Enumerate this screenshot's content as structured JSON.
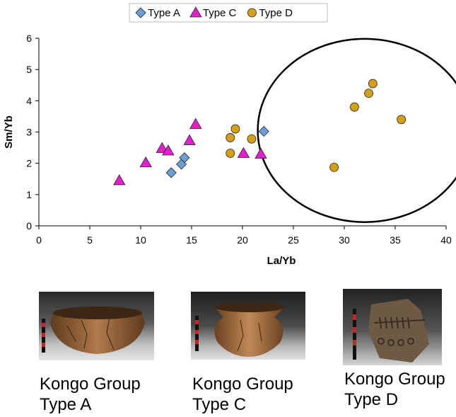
{
  "chart_data": {
    "type": "scatter",
    "xlabel": "La/Yb",
    "ylabel": "Sm/Yb",
    "xlim": [
      0,
      40
    ],
    "ylim": [
      0,
      6
    ],
    "xticks": [
      0,
      5,
      10,
      15,
      20,
      25,
      30,
      35,
      40
    ],
    "yticks": [
      0,
      1,
      2,
      3,
      4,
      5,
      6
    ],
    "grid": false,
    "legend": "top-center",
    "series": [
      {
        "name": "Type A",
        "marker": "diamond",
        "color": "#6a9fd8",
        "points": [
          [
            13.0,
            1.7
          ],
          [
            14.0,
            1.97
          ],
          [
            14.3,
            2.18
          ],
          [
            22.1,
            3.02
          ]
        ]
      },
      {
        "name": "Type C",
        "marker": "triangle",
        "color": "#e51ecf",
        "points": [
          [
            7.9,
            1.45
          ],
          [
            10.5,
            2.02
          ],
          [
            12.1,
            2.48
          ],
          [
            12.7,
            2.4
          ],
          [
            14.8,
            2.73
          ],
          [
            15.4,
            3.25
          ],
          [
            20.1,
            2.32
          ],
          [
            21.8,
            2.3
          ]
        ]
      },
      {
        "name": "Type D",
        "marker": "circle",
        "color": "#d4a017",
        "points": [
          [
            18.8,
            2.82
          ],
          [
            19.3,
            3.1
          ],
          [
            18.8,
            2.32
          ],
          [
            20.9,
            2.78
          ],
          [
            29.0,
            1.87
          ],
          [
            31.0,
            3.8
          ],
          [
            32.4,
            4.24
          ],
          [
            32.8,
            4.55
          ],
          [
            35.6,
            3.4
          ]
        ]
      }
    ],
    "annotations": [
      {
        "shape": "ellipse",
        "center": [
          32.0,
          3.05
        ],
        "radius": [
          10.5,
          2.93
        ],
        "encloses": "Type D cluster"
      }
    ]
  },
  "photos": [
    {
      "subject": "bowl",
      "caption_line1": "Kongo Group",
      "caption_line2": "Type A",
      "pottery_color": "#8a5a34"
    },
    {
      "subject": "pot",
      "caption_line1": "Kongo Group",
      "caption_line2": "Type C",
      "pottery_color": "#9a6a3c"
    },
    {
      "subject": "sherd",
      "caption_line1": "Kongo Group",
      "caption_line2": "Type D",
      "pottery_color": "#6e5a44"
    }
  ]
}
